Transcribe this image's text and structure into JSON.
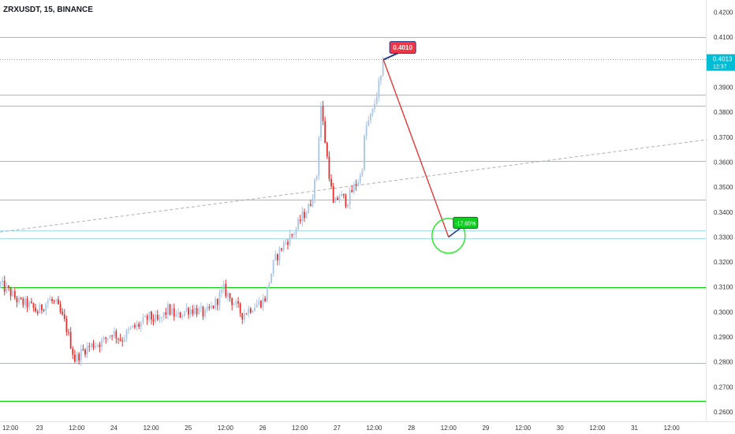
{
  "header": {
    "title": "ZRXUSDT, 15, BINANCE"
  },
  "colors": {
    "up": "#a9c5e8",
    "down": "#e0312f",
    "grid_level": "#b2b5be",
    "green_level": "#00d400",
    "current_price_line": "#26c6da",
    "current_price_badge": "#00bcd4",
    "arrow": "#e53935",
    "entry_badge": "#f23645",
    "target_badge": "#0ece1f",
    "trendline": "#b0b0b0",
    "circle": "#2ee82e"
  },
  "price_axis": {
    "labels": [
      "0.4200",
      "0.4100",
      "0.4000",
      "0.3900",
      "0.3800",
      "0.3700",
      "0.3600",
      "0.3500",
      "0.3400",
      "0.3300",
      "0.3200",
      "0.3100",
      "0.3000",
      "0.2900",
      "0.2800",
      "0.2700",
      "0.2600"
    ],
    "current_price": "0.4013",
    "current_time": "12:37"
  },
  "time_axis": {
    "labels": [
      "12:00",
      "23",
      "12:00",
      "24",
      "12:00",
      "25",
      "12:00",
      "26",
      "12:00",
      "27",
      "12:00",
      "28",
      "12:00",
      "29",
      "12:00",
      "30",
      "12:00",
      "31",
      "12:00"
    ]
  },
  "annotations": {
    "entry_label": "0.4010",
    "target_label": "-17.65%"
  },
  "chart_data": {
    "type": "candlestick",
    "symbol": "ZRXUSDT",
    "interval": "15",
    "exchange": "BINANCE",
    "ylim": [
      0.2585,
      0.4235
    ],
    "x_labels": [
      "12:00",
      "23",
      "12:00",
      "24",
      "12:00",
      "25",
      "12:00",
      "26",
      "12:00",
      "27",
      "12:00",
      "28",
      "12:00",
      "29",
      "12:00",
      "30",
      "12:00",
      "31",
      "12:00"
    ],
    "price_path": [
      [
        0,
        0.311
      ],
      [
        0.5,
        0.308
      ],
      [
        1,
        0.304
      ],
      [
        1.5,
        0.303
      ],
      [
        2,
        0.3
      ],
      [
        2.6,
        0.305
      ],
      [
        3,
        0.303
      ],
      [
        3.5,
        0.295
      ],
      [
        4,
        0.281
      ],
      [
        4.5,
        0.285
      ],
      [
        5,
        0.287
      ],
      [
        5.5,
        0.288
      ],
      [
        6,
        0.292
      ],
      [
        6.5,
        0.289
      ],
      [
        7,
        0.293
      ],
      [
        7.5,
        0.295
      ],
      [
        8,
        0.298
      ],
      [
        8.5,
        0.296
      ],
      [
        9,
        0.301
      ],
      [
        9.5,
        0.298
      ],
      [
        10,
        0.301
      ],
      [
        10.5,
        0.301
      ],
      [
        11,
        0.299
      ],
      [
        11.5,
        0.303
      ],
      [
        12,
        0.309
      ],
      [
        12.5,
        0.304
      ],
      [
        13,
        0.299
      ],
      [
        13.5,
        0.302
      ],
      [
        14,
        0.304
      ],
      [
        14.2,
        0.305
      ],
      [
        14.7,
        0.32
      ],
      [
        15.2,
        0.327
      ],
      [
        15.8,
        0.332
      ],
      [
        16.2,
        0.338
      ],
      [
        16.6,
        0.342
      ],
      [
        17,
        0.355
      ],
      [
        17.2,
        0.384
      ],
      [
        17.5,
        0.365
      ],
      [
        17.9,
        0.342
      ],
      [
        18.2,
        0.347
      ],
      [
        18.6,
        0.344
      ],
      [
        19,
        0.35
      ],
      [
        19.4,
        0.355
      ],
      [
        19.6,
        0.373
      ],
      [
        20,
        0.38
      ],
      [
        20.3,
        0.39
      ],
      [
        20.5,
        0.395
      ],
      [
        20.6,
        0.401
      ]
    ],
    "horizontal_levels": [
      {
        "price": 0.41,
        "style": "solid",
        "color": "gray"
      },
      {
        "price": 0.4013,
        "style": "dotted",
        "color": "cyan"
      },
      {
        "price": 0.387,
        "style": "solid",
        "color": "gray"
      },
      {
        "price": 0.3825,
        "style": "solid",
        "color": "gray"
      },
      {
        "price": 0.3605,
        "style": "solid",
        "color": "gray"
      },
      {
        "price": 0.345,
        "style": "solid",
        "color": "gray"
      },
      {
        "price": 0.3325,
        "style": "solid",
        "color": "light-blue"
      },
      {
        "price": 0.3295,
        "style": "solid",
        "color": "light-blue"
      },
      {
        "price": 0.31,
        "style": "solid",
        "color": "green"
      },
      {
        "price": 0.2795,
        "style": "solid",
        "color": "gray"
      },
      {
        "price": 0.2645,
        "style": "solid",
        "color": "green"
      }
    ],
    "trendline": {
      "from": [
        0,
        0.332
      ],
      "to": [
        38,
        0.369
      ],
      "style": "dashed"
    },
    "projection_arrow": {
      "from": [
        20.6,
        0.401
      ],
      "to": [
        24.1,
        0.33
      ]
    },
    "target_circle": {
      "center": [
        24.1,
        0.3305
      ]
    }
  }
}
